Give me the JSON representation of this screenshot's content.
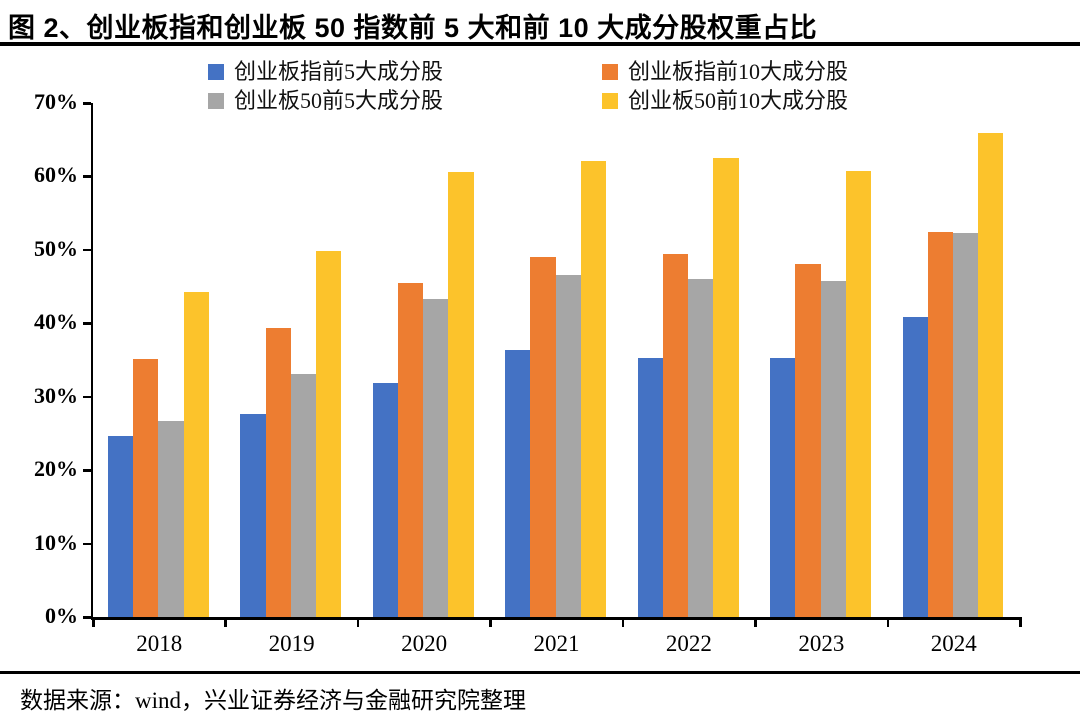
{
  "figure": {
    "title": "图 2、创业板指和创业板 50 指数前 5 大和前 10 大成分股权重占比",
    "source": "数据来源：wind，兴业证券经济与金融研究院整理"
  },
  "colors": {
    "background": "#FFFFFF",
    "axis": "#000000",
    "text": "#000000",
    "series_blue": "#4472C4",
    "series_orange": "#ED7D31",
    "series_gray": "#A6A6A6",
    "series_yellow": "#FCC32B"
  },
  "chart_data": {
    "type": "bar",
    "title": "图 2、创业板指和创业板 50 指数前 5 大和前 10 大成分股权重占比",
    "categories": [
      "2018",
      "2019",
      "2020",
      "2021",
      "2022",
      "2023",
      "2024"
    ],
    "series": [
      {
        "name": "创业板指前5大成分股",
        "color": "#4472C4",
        "values": [
          24.7,
          27.6,
          31.8,
          36.4,
          35.3,
          35.3,
          40.9
        ]
      },
      {
        "name": "创业板指前10大成分股",
        "color": "#ED7D31",
        "values": [
          35.2,
          39.3,
          45.5,
          49.0,
          49.4,
          48.1,
          52.5
        ]
      },
      {
        "name": "创业板50前5大成分股",
        "color": "#A6A6A6",
        "values": [
          26.7,
          33.1,
          43.3,
          46.6,
          46.0,
          45.7,
          52.3
        ]
      },
      {
        "name": "创业板50前10大成分股",
        "color": "#FCC32B",
        "values": [
          44.3,
          49.8,
          60.6,
          62.1,
          62.5,
          60.7,
          65.9
        ]
      }
    ],
    "xlabel": "",
    "ylabel": "",
    "ylim": [
      0,
      70
    ],
    "ytick_step": 10,
    "ytick_labels": [
      "0%",
      "10%",
      "20%",
      "30%",
      "40%",
      "50%",
      "60%",
      "70%"
    ],
    "grid": false,
    "legend_position": "top",
    "legend_layout": "2x2"
  }
}
